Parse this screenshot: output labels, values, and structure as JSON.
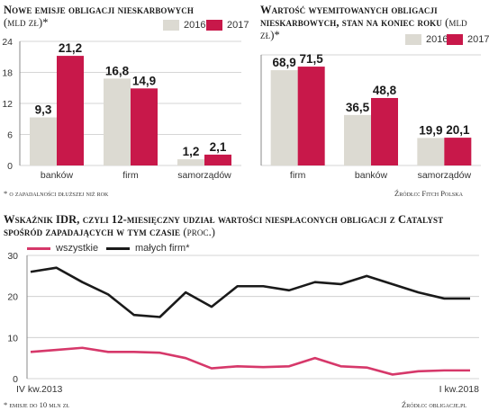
{
  "chart_data": [
    {
      "type": "bar",
      "title": "Nowe emisje obligacji nieskarbowych",
      "unit": "(mld zł)*",
      "categories": [
        "banków",
        "firm",
        "samorządów"
      ],
      "series": [
        {
          "name": "2016",
          "values": [
            9.3,
            16.8,
            1.2
          ],
          "labels": [
            "9,3",
            "16,8",
            "1,2"
          ],
          "color": "#dcdad2"
        },
        {
          "name": "2017",
          "values": [
            21.2,
            14.9,
            2.1
          ],
          "labels": [
            "21,2",
            "14,9",
            "2,1"
          ],
          "color": "#c8184a"
        }
      ],
      "yticks": [
        "0",
        "6",
        "12",
        "18",
        "24"
      ],
      "ylim": [
        0,
        24
      ],
      "grid": true,
      "legend": "top-right",
      "footnote": "* o zapadalności dłuższej niż rok"
    },
    {
      "type": "bar",
      "title": "Wartość wyemitowanych obligacji nieskarbowych, stan na koniec roku",
      "unit": "(mld zł)*",
      "categories": [
        "firm",
        "banków",
        "samorządów"
      ],
      "series": [
        {
          "name": "2016",
          "values": [
            68.9,
            36.5,
            19.9
          ],
          "labels": [
            "68,9",
            "36,5",
            "19,9"
          ],
          "color": "#dcdad2"
        },
        {
          "name": "2017",
          "values": [
            71.5,
            48.8,
            20.1
          ],
          "labels": [
            "71,5",
            "48,8",
            "20,1"
          ],
          "color": "#c8184a"
        }
      ],
      "ylim": [
        0,
        80
      ],
      "grid": true,
      "legend": "top-right",
      "source": "Źródło: Fitch Polska"
    },
    {
      "type": "line",
      "title": "Wskaźnik IDR, czyli 12-miesięczny udział wartości niespłaconych obligacji z Catalyst spośród zapadających w tym czasie",
      "unit": "(proc.)",
      "series": [
        {
          "name": "wszystkie",
          "color": "#d6386a",
          "values": [
            6.5,
            7.0,
            7.5,
            6.5,
            6.5,
            6.3,
            5.0,
            2.5,
            3.0,
            2.8,
            3.0,
            5.0,
            3.0,
            2.7,
            1.0,
            1.8,
            2.0,
            2.0
          ]
        },
        {
          "name": "małych firm*",
          "color": "#1a1a1a",
          "values": [
            26.0,
            27.0,
            23.5,
            20.5,
            15.5,
            15.0,
            21.0,
            17.5,
            22.5,
            22.5,
            21.5,
            23.5,
            23.0,
            25.0,
            23.0,
            21.0,
            19.5,
            19.5
          ]
        }
      ],
      "yticks": [
        "0",
        "10",
        "20",
        "30"
      ],
      "ylim": [
        0,
        30
      ],
      "x_start_label": "IV kw.2013",
      "x_end_label": "I kw.2018",
      "grid": true,
      "legend": "top-left",
      "footnote": "* emisje do 10 mln zł",
      "source": "Źródło: obligacje.pl"
    }
  ]
}
